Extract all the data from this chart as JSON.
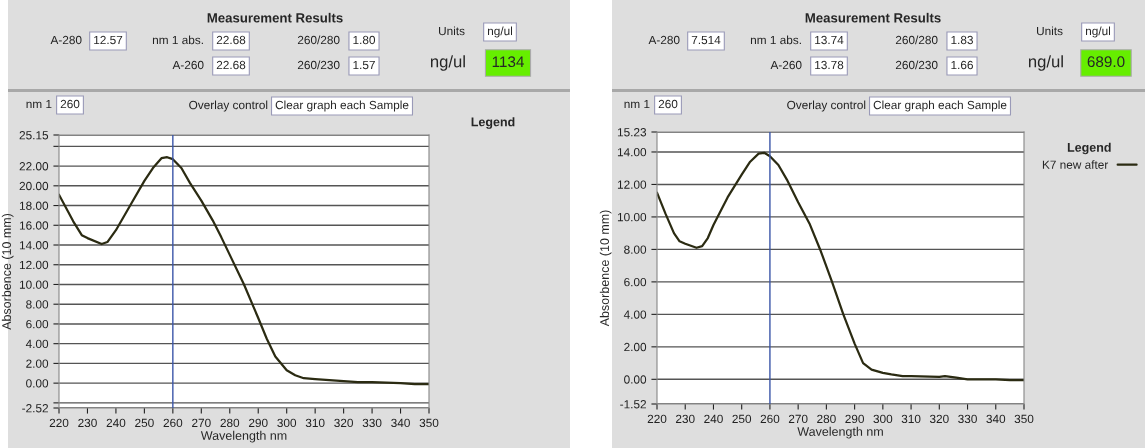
{
  "chart_data": [
    {
      "type": "line",
      "title": "Measurement Results",
      "xlabel": "Wavelength nm",
      "ylabel": "Absorbence (10 mm)",
      "legend_title": "Legend",
      "annotations": [
        "A-280",
        "12.57",
        "nm 1 abs.",
        "22.68",
        "260/280",
        "1.80",
        "A-260",
        "22.68",
        "260/230",
        "1.57",
        "Units",
        "ng/ul",
        "ng/ul",
        "1134",
        "nm 1",
        "260",
        "Overlay control",
        "Clear graph each Sample"
      ],
      "xlim": [
        220,
        350
      ],
      "xticks": [
        220,
        230,
        240,
        250,
        260,
        270,
        280,
        290,
        300,
        310,
        320,
        330,
        340,
        350
      ],
      "ylim": [
        -2.52,
        25.15
      ],
      "yticks": [
        {
          "value": -2.52,
          "label": "-2.52"
        },
        {
          "value": -2,
          "label": null
        },
        {
          "value": 0,
          "label": "0.00"
        },
        {
          "value": 2,
          "label": "2.00"
        },
        {
          "value": 4,
          "label": "4.00"
        },
        {
          "value": 6,
          "label": "6.00"
        },
        {
          "value": 8,
          "label": "8.00"
        },
        {
          "value": 10,
          "label": "10.00"
        },
        {
          "value": 12,
          "label": "12.00"
        },
        {
          "value": 14,
          "label": "14.00"
        },
        {
          "value": 16,
          "label": "16.00"
        },
        {
          "value": 18,
          "label": "18.00"
        },
        {
          "value": 20,
          "label": "20.00"
        },
        {
          "value": 22,
          "label": "22.00"
        },
        {
          "value": 24,
          "label": null
        },
        {
          "value": 25.15,
          "label": "25.15"
        }
      ],
      "grid": "y",
      "ref_lines": [
        {
          "axis": "x",
          "value": 260,
          "color": "#3a55a8"
        }
      ],
      "series": [
        {
          "color": "#2b2b12",
          "x": [
            220,
            225,
            228,
            230,
            235,
            237,
            240,
            245,
            250,
            253,
            256,
            258,
            260,
            263,
            266,
            270,
            274,
            277,
            280,
            285,
            290,
            293,
            296,
            300,
            303,
            306,
            310,
            315,
            320,
            325,
            330,
            340,
            345,
            350
          ],
          "values": [
            19.1,
            16.4,
            15.0,
            14.7,
            14.1,
            14.3,
            15.5,
            18.0,
            20.5,
            21.8,
            22.8,
            22.9,
            22.7,
            21.8,
            20.3,
            18.5,
            16.5,
            14.8,
            13.0,
            10.0,
            6.6,
            4.5,
            2.7,
            1.3,
            0.8,
            0.5,
            0.4,
            0.3,
            0.2,
            0.1,
            0.1,
            0.0,
            -0.1,
            -0.1
          ]
        }
      ]
    },
    {
      "type": "line",
      "title": "Measurement Results",
      "xlabel": "Wavelength nm",
      "ylabel": "Absorbence (10 mm)",
      "legend_title": "Legend",
      "legend": "top right",
      "annotations": [
        "A-280",
        "7.514",
        "nm 1 abs.",
        "13.74",
        "260/280",
        "1.83",
        "A-260",
        "13.78",
        "260/230",
        "1.66",
        "Units",
        "ng/ul",
        "ng/ul",
        "689.0",
        "nm 1",
        "260",
        "Overlay control",
        "Clear graph each Sample"
      ],
      "xlim": [
        220,
        350
      ],
      "xticks": [
        220,
        230,
        240,
        250,
        260,
        270,
        280,
        290,
        300,
        310,
        320,
        330,
        340,
        350
      ],
      "ylim": [
        -1.52,
        15.23
      ],
      "yticks": [
        {
          "value": -1.52,
          "label": "-1.52"
        },
        {
          "value": 0,
          "label": "0.00"
        },
        {
          "value": 2,
          "label": "2.00"
        },
        {
          "value": 4,
          "label": "4.00"
        },
        {
          "value": 6,
          "label": "6.00"
        },
        {
          "value": 8,
          "label": "8.00"
        },
        {
          "value": 10,
          "label": "10.00"
        },
        {
          "value": 12,
          "label": "12.00"
        },
        {
          "value": 14,
          "label": "14.00"
        },
        {
          "value": 15.23,
          "label": "15.23"
        }
      ],
      "grid": "y",
      "ref_lines": [
        {
          "axis": "x",
          "value": 260,
          "color": "#3a55a8"
        }
      ],
      "series": [
        {
          "name": "K7 new after",
          "color": "#2b2b12",
          "x": [
            220,
            223,
            226,
            228,
            230,
            234,
            236,
            238,
            240,
            245,
            250,
            253,
            256,
            258,
            260,
            263,
            266,
            270,
            274,
            278,
            282,
            286,
            290,
            293,
            296,
            300,
            303,
            307,
            310,
            320,
            322,
            326,
            330,
            340,
            345,
            350
          ],
          "values": [
            11.5,
            10.2,
            9.0,
            8.5,
            8.35,
            8.1,
            8.2,
            8.7,
            9.5,
            11.2,
            12.6,
            13.4,
            13.9,
            13.95,
            13.74,
            13.2,
            12.3,
            10.9,
            9.6,
            7.9,
            6.0,
            4.0,
            2.2,
            1.0,
            0.6,
            0.4,
            0.3,
            0.2,
            0.2,
            0.15,
            0.2,
            0.1,
            0.0,
            0.0,
            -0.05,
            -0.05
          ]
        }
      ]
    }
  ]
}
